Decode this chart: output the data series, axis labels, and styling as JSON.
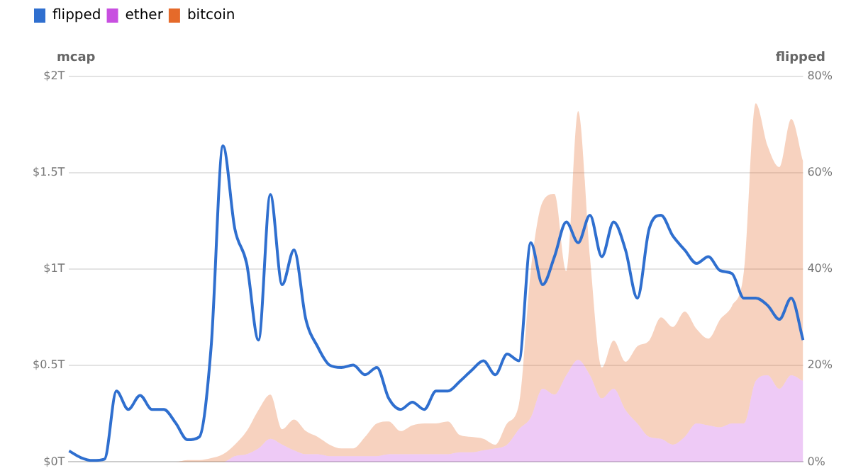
{
  "chart_data": {
    "type": "area",
    "ylabel": "mcap",
    "y2label": "flipped",
    "categories": [
      null,
      null,
      null,
      null,
      null,
      null,
      null,
      null,
      null,
      null,
      null,
      null,
      null,
      null,
      null,
      null,
      null,
      null,
      null,
      null,
      null,
      null,
      null,
      null,
      null,
      null,
      null,
      null,
      null,
      null,
      null,
      null,
      null,
      null,
      null,
      null,
      null,
      null,
      null,
      null,
      null,
      null,
      null,
      null,
      null,
      null,
      null,
      null,
      null,
      null,
      null,
      null,
      null,
      null,
      null,
      null,
      null,
      null,
      null,
      null,
      null,
      null,
      null
    ],
    "stacked": true,
    "series": [
      {
        "name": "flipped",
        "type": "line",
        "axis": "y2",
        "color": "#2f6fcf",
        "values": [
          2.3,
          0.9,
          0.3,
          0.6,
          14.7,
          10.9,
          13.8,
          10.9,
          10.9,
          8.1,
          4.6,
          5.2,
          23.9,
          65.6,
          48.4,
          41.2,
          25.3,
          55.5,
          36.8,
          44,
          29.6,
          23.9,
          20.1,
          19.6,
          20.1,
          18.1,
          19.6,
          13.2,
          10.9,
          12.4,
          10.9,
          14.7,
          14.7,
          16.7,
          19,
          21,
          18.1,
          22.4,
          21,
          45.5,
          36.8,
          42.6,
          49.8,
          45.5,
          51.2,
          42.6,
          49.8,
          44,
          34,
          48.4,
          51.2,
          46.9,
          44,
          41.2,
          42.6,
          39.7,
          39.1,
          34,
          34,
          32.5,
          29.6,
          34,
          25.3
        ]
      },
      {
        "name": "ether",
        "color": "#c84fe0",
        "values": [
          0,
          0,
          0,
          0,
          0,
          0,
          0,
          0,
          0,
          0,
          0,
          0,
          0,
          0,
          0.03,
          0.04,
          0.07,
          0.12,
          0.09,
          0.06,
          0.04,
          0.04,
          0.03,
          0.03,
          0.03,
          0.03,
          0.03,
          0.04,
          0.04,
          0.04,
          0.04,
          0.04,
          0.04,
          0.05,
          0.05,
          0.06,
          0.07,
          0.09,
          0.17,
          0.23,
          0.38,
          0.35,
          0.45,
          0.53,
          0.45,
          0.33,
          0.38,
          0.27,
          0.2,
          0.13,
          0.12,
          0.09,
          0.13,
          0.2,
          0.19,
          0.18,
          0.2,
          0.2,
          0.42,
          0.45,
          0.38,
          0.45,
          0.42
        ]
      },
      {
        "name": "bitcoin",
        "color": "#e56a2a",
        "values": [
          0,
          0,
          0,
          0,
          0,
          0,
          0,
          0,
          0,
          0,
          0.01,
          0.01,
          0.02,
          0.04,
          0.06,
          0.12,
          0.2,
          0.23,
          0.08,
          0.16,
          0.12,
          0.09,
          0.06,
          0.04,
          0.04,
          0.1,
          0.17,
          0.17,
          0.12,
          0.15,
          0.16,
          0.16,
          0.17,
          0.09,
          0.08,
          0.06,
          0.02,
          0.11,
          0.13,
          0.76,
          0.97,
          1.04,
          0.54,
          1.29,
          0.61,
          0.16,
          0.25,
          0.25,
          0.4,
          0.5,
          0.63,
          0.61,
          0.65,
          0.49,
          0.45,
          0.56,
          0.61,
          0.79,
          1.44,
          1.19,
          1.15,
          1.33,
          1.14
        ]
      }
    ],
    "ylim": [
      0,
      2
    ],
    "yticks": [
      {
        "value": 0,
        "label": "$0T"
      },
      {
        "value": 0.5,
        "label": "$0.5T"
      },
      {
        "value": 1,
        "label": "$1T"
      },
      {
        "value": 1.5,
        "label": "$1.5T"
      },
      {
        "value": 2,
        "label": "$2T"
      }
    ],
    "y2lim": [
      0,
      80
    ],
    "y2ticks": [
      {
        "value": 0,
        "label": "0%"
      },
      {
        "value": 20,
        "label": "20%"
      },
      {
        "value": 40,
        "label": "40%"
      },
      {
        "value": 60,
        "label": "60%"
      },
      {
        "value": 80,
        "label": "80%"
      }
    ],
    "grid": "y",
    "legend": "top left",
    "tick_labels": "y"
  }
}
